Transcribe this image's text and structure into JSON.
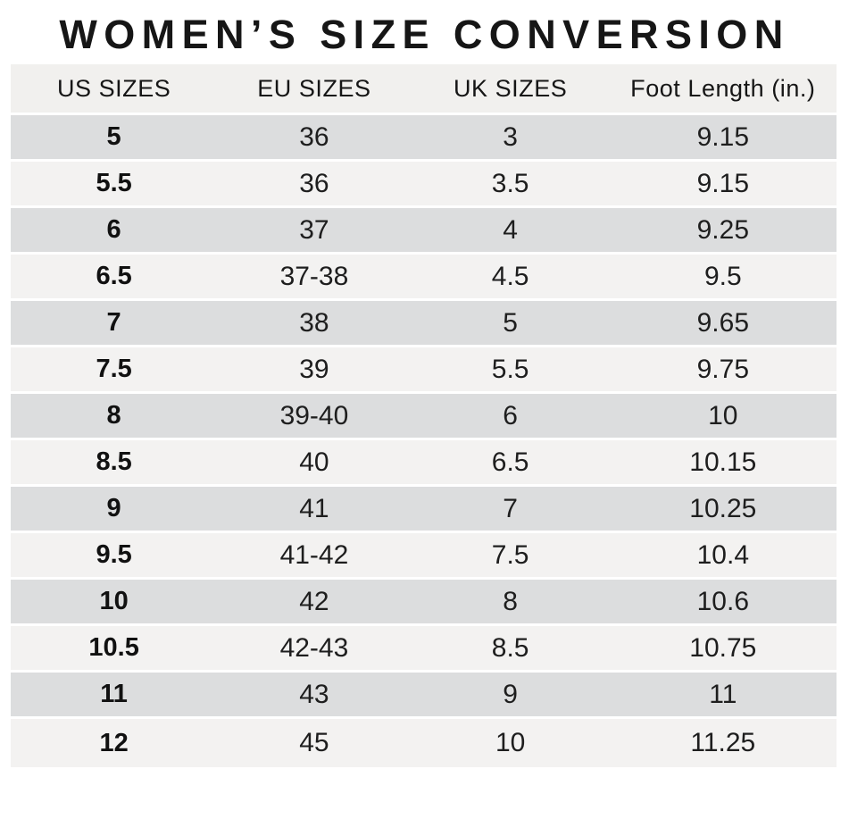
{
  "title": "WOMEN’S SIZE CONVERSION",
  "chart_data": {
    "type": "table",
    "title": "WOMEN’S SIZE CONVERSION",
    "columns": [
      "US SIZES",
      "EU SIZES",
      "UK SIZES",
      "Foot Length (in.)"
    ],
    "rows": [
      [
        "5",
        "36",
        "3",
        "9.15"
      ],
      [
        "5.5",
        "36",
        "3.5",
        "9.15"
      ],
      [
        "6",
        "37",
        "4",
        "9.25"
      ],
      [
        "6.5",
        "37-38",
        "4.5",
        "9.5"
      ],
      [
        "7",
        "38",
        "5",
        "9.65"
      ],
      [
        "7.5",
        "39",
        "5.5",
        "9.75"
      ],
      [
        "8",
        "39-40",
        "6",
        "10"
      ],
      [
        "8.5",
        "40",
        "6.5",
        "10.15"
      ],
      [
        "9",
        "41",
        "7",
        "10.25"
      ],
      [
        "9.5",
        "41-42",
        "7.5",
        "10.4"
      ],
      [
        "10",
        "42",
        "8",
        "10.6"
      ],
      [
        "10.5",
        "42-43",
        "8.5",
        "10.75"
      ],
      [
        "11",
        "43",
        "9",
        "11"
      ],
      [
        "12",
        "45",
        "10",
        "11.25"
      ]
    ],
    "layout": {
      "row_striping": "odd rows dark gray, even rows light gray",
      "first_column_bold": true
    }
  },
  "colors": {
    "background": "#ffffff",
    "header_bg": "#f1f0ee",
    "row_dark": "#dcddde",
    "row_light": "#f3f2f1",
    "text": "#1e1e1e",
    "title": "#161616"
  }
}
